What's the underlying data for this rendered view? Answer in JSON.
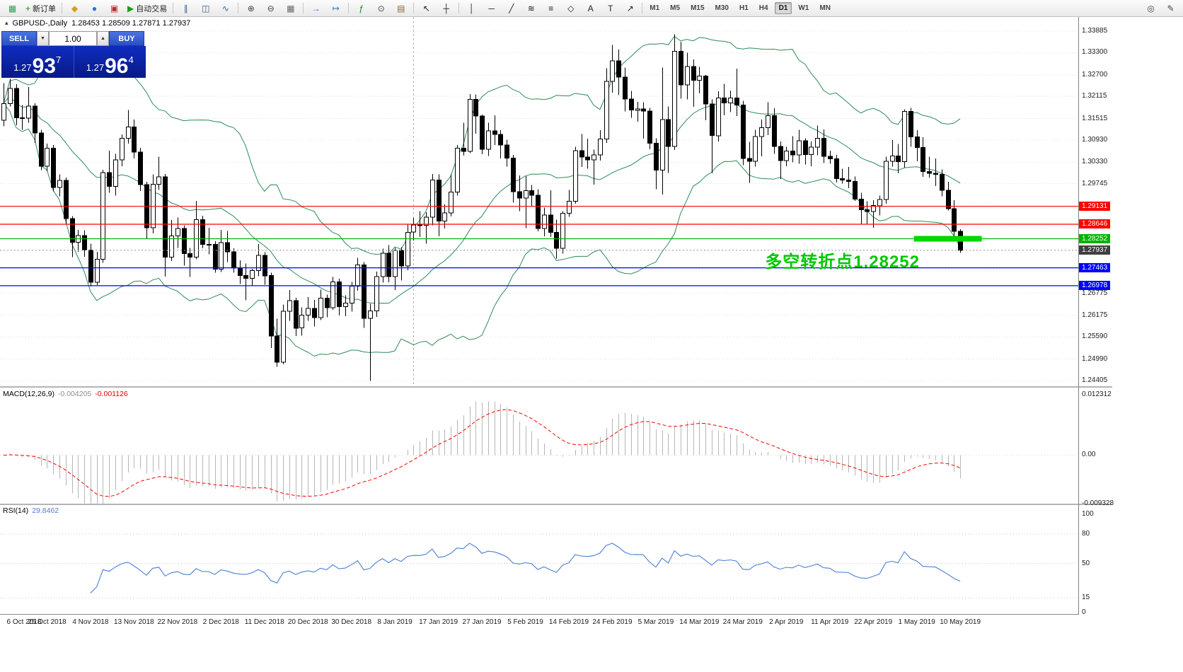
{
  "toolbar": {
    "groups": [
      {
        "items": [
          {
            "name": "app-button",
            "icon": "app-icon"
          },
          {
            "name": "new-order-button",
            "icon": "new-order-icon",
            "label": "新订单"
          }
        ]
      },
      {
        "items": [
          {
            "name": "charts-popup-button",
            "icon": "charts-popup-icon"
          },
          {
            "name": "profiles-button",
            "icon": "profiles-icon"
          },
          {
            "name": "strategy-tester-button",
            "icon": "strategy-tester-icon"
          },
          {
            "name": "autotrading-button",
            "icon": "autotrading-play-icon",
            "label": "自动交易"
          }
        ]
      },
      {
        "items": [
          {
            "name": "bar-chart-button",
            "icon": "bar-chart-icon"
          },
          {
            "name": "candlestick-chart-button",
            "icon": "candlestick-chart-icon"
          },
          {
            "name": "line-chart-button",
            "icon": "line-chart-icon"
          }
        ]
      },
      {
        "items": [
          {
            "name": "zoom-in-button",
            "icon": "zoom-in-icon"
          },
          {
            "name": "zoom-out-button",
            "icon": "zoom-out-icon"
          },
          {
            "name": "tile-windows-button",
            "icon": "tile-windows-icon"
          }
        ]
      },
      {
        "items": [
          {
            "name": "auto-scroll-button",
            "icon": "auto-scroll-icon"
          },
          {
            "name": "chart-shift-button",
            "icon": "chart-shift-icon"
          }
        ]
      },
      {
        "items": [
          {
            "name": "indicators-button",
            "icon": "indicators-icon"
          },
          {
            "name": "periods-button",
            "icon": "periods-icon"
          },
          {
            "name": "templates-button",
            "icon": "templates-icon"
          }
        ]
      },
      {
        "items": [
          {
            "name": "cursor-button",
            "icon": "cursor-icon"
          },
          {
            "name": "crosshair-button",
            "icon": "crosshair-icon"
          }
        ]
      },
      {
        "items": [
          {
            "name": "vertical-line-button",
            "icon": "vertical-line-icon"
          },
          {
            "name": "horizontal-line-button",
            "icon": "horizontal-line-icon"
          },
          {
            "name": "trendline-button",
            "icon": "trendline-icon"
          },
          {
            "name": "channel-button",
            "icon": "channel-icon"
          },
          {
            "name": "fibonacci-button",
            "icon": "fibonacci-icon"
          },
          {
            "name": "shapes-button",
            "icon": "shapes-icon"
          },
          {
            "name": "text-button",
            "icon": "text-icon"
          },
          {
            "name": "text-label-button",
            "icon": "text-label-icon"
          },
          {
            "name": "arrows-button",
            "icon": "arrows-icon"
          }
        ]
      }
    ],
    "timeframes": [
      "M1",
      "M5",
      "M15",
      "M30",
      "H1",
      "H4",
      "D1",
      "W1",
      "MN"
    ],
    "active_timeframe": "D1",
    "right_items": [
      {
        "name": "search-button",
        "icon": "search-icon"
      },
      {
        "name": "quick-edit-button",
        "icon": "edit-icon"
      }
    ]
  },
  "chart_header": {
    "icon": "▴",
    "symbol_period": "GBPUSD-,Daily",
    "ohlc": "1.28453 1.28509 1.27871 1.27937"
  },
  "quote_panel": {
    "sell_label": "SELL",
    "buy_label": "BUY",
    "volume": "1.00",
    "volume_down_icon": "▼",
    "volume_up_icon": "▲",
    "sell_price": {
      "prefix": "1.27",
      "big": "93",
      "sup": "7"
    },
    "buy_price": {
      "prefix": "1.27",
      "big": "96",
      "sup": "4"
    }
  },
  "annotation": {
    "text": "多空转折点1.28252",
    "color": "#00C800"
  },
  "macd": {
    "title": "MACD(12,26,9)",
    "main_value": "-0.004205",
    "signal_value": "-0.001126",
    "axis_labels": [
      "0.012312",
      "0.00",
      "-0.009328"
    ]
  },
  "rsi": {
    "title": "RSI(14)",
    "value": "29.8462",
    "axis_labels": [
      "100",
      "80",
      "50",
      "15",
      "0"
    ]
  },
  "chart_data": {
    "type": "candlestick",
    "symbol": "GBPUSD",
    "period": "Daily",
    "price_ticks": [
      "1.33885",
      "1.33300",
      "1.32700",
      "1.32115",
      "1.31515",
      "1.30930",
      "1.30330",
      "1.29745",
      "1.29145",
      "1.28560",
      "1.27960",
      "1.27375",
      "1.26775",
      "1.26175",
      "1.25590",
      "1.24990",
      "1.24405"
    ],
    "date_labels": [
      "6 Oct 2018",
      "25 Oct 2018",
      "4 Nov 2018",
      "13 Nov 2018",
      "22 Nov 2018",
      "2 Dec 2018",
      "11 Dec 2018",
      "20 Dec 2018",
      "30 Dec 2018",
      "8 Jan 2019",
      "17 Jan 2019",
      "27 Jan 2019",
      "5 Feb 2019",
      "14 Feb 2019",
      "24 Feb 2019",
      "5 Mar 2019",
      "14 Mar 2019",
      "24 Mar 2019",
      "2 Apr 2019",
      "11 Apr 2019",
      "22 Apr 2019",
      "1 May 2019",
      "10 May 2019"
    ],
    "label_step": 7,
    "vline_index": 66,
    "candle_up": "#ffffff",
    "candle_down": "#000000",
    "bollinger": {
      "period": 20,
      "deviation": 2,
      "color": "#2E8B57"
    },
    "levels": [
      {
        "price": 1.29131,
        "color": "#FF0000"
      },
      {
        "price": 1.28646,
        "color": "#FF0000"
      },
      {
        "price": 1.28252,
        "color": "#00B400"
      },
      {
        "price": 1.27463,
        "color": "#0000FF"
      },
      {
        "price": 1.26978,
        "color": "#0000FF"
      }
    ],
    "current_price": 1.27937,
    "highlight_bar": {
      "price": 1.28252,
      "from_index": 147,
      "to_index": 157,
      "color": "#00D800"
    },
    "macd": {
      "fast": 12,
      "slow": 26,
      "signal": 9,
      "range": [
        -0.009328,
        0.012312
      ],
      "histogram_color": "#b6b6b6",
      "signal_color": "#FF0000"
    },
    "rsi": {
      "period": 14,
      "levels": [
        80,
        50,
        15
      ],
      "color": "#4A7FD4"
    },
    "candles": [
      [
        1.3147,
        1.3247,
        1.313,
        1.3192
      ],
      [
        1.3192,
        1.3259,
        1.3184,
        1.3233
      ],
      [
        1.3233,
        1.3245,
        1.3133,
        1.3153
      ],
      [
        1.3153,
        1.3188,
        1.3121,
        1.3152
      ],
      [
        1.3152,
        1.3237,
        1.314,
        1.3185
      ],
      [
        1.3185,
        1.3193,
        1.3085,
        1.3112
      ],
      [
        1.3112,
        1.3121,
        1.3011,
        1.3022
      ],
      [
        1.3022,
        1.3083,
        1.3009,
        1.3071
      ],
      [
        1.3071,
        1.308,
        1.2954,
        1.2964
      ],
      [
        1.2964,
        1.3,
        1.294,
        1.2984
      ],
      [
        1.2984,
        1.2991,
        1.2865,
        1.288
      ],
      [
        1.288,
        1.2887,
        1.2775,
        1.2816
      ],
      [
        1.2816,
        1.2849,
        1.279,
        1.2834
      ],
      [
        1.2834,
        1.2848,
        1.2776,
        1.2795
      ],
      [
        1.2795,
        1.2812,
        1.2696,
        1.2707
      ],
      [
        1.2707,
        1.279,
        1.27,
        1.277
      ],
      [
        1.277,
        1.3012,
        1.276,
        1.3005
      ],
      [
        1.3005,
        1.3064,
        1.295,
        1.2967
      ],
      [
        1.2967,
        1.3056,
        1.2942,
        1.3039
      ],
      [
        1.3039,
        1.3108,
        1.3022,
        1.3098
      ],
      [
        1.3098,
        1.3175,
        1.3083,
        1.3128
      ],
      [
        1.3128,
        1.3149,
        1.3043,
        1.306
      ],
      [
        1.306,
        1.3072,
        1.2955,
        1.2972
      ],
      [
        1.2972,
        1.298,
        1.2825,
        1.2855
      ],
      [
        1.2855,
        1.3,
        1.284,
        1.2973
      ],
      [
        1.2973,
        1.3048,
        1.2958,
        1.2993
      ],
      [
        1.2993,
        1.3001,
        1.2723,
        1.2775
      ],
      [
        1.2775,
        1.2876,
        1.2765,
        1.2833
      ],
      [
        1.2833,
        1.2883,
        1.28,
        1.2853
      ],
      [
        1.2853,
        1.2862,
        1.2752,
        1.2785
      ],
      [
        1.2785,
        1.28,
        1.2722,
        1.2775
      ],
      [
        1.2775,
        1.2928,
        1.277,
        1.2877
      ],
      [
        1.2877,
        1.2888,
        1.2799,
        1.281
      ],
      [
        1.281,
        1.2855,
        1.2783,
        1.281
      ],
      [
        1.281,
        1.2819,
        1.2733,
        1.2743
      ],
      [
        1.2743,
        1.2849,
        1.2735,
        1.2815
      ],
      [
        1.2815,
        1.2846,
        1.2762,
        1.279
      ],
      [
        1.279,
        1.2799,
        1.2733,
        1.2746
      ],
      [
        1.2746,
        1.2767,
        1.2702,
        1.2725
      ],
      [
        1.2725,
        1.2758,
        1.2658,
        1.2718
      ],
      [
        1.2718,
        1.2744,
        1.2697,
        1.2739
      ],
      [
        1.2739,
        1.2811,
        1.2724,
        1.278
      ],
      [
        1.278,
        1.2789,
        1.2701,
        1.2725
      ],
      [
        1.2725,
        1.2733,
        1.2529,
        1.2561
      ],
      [
        1.2561,
        1.2608,
        1.2478,
        1.249
      ],
      [
        1.249,
        1.2647,
        1.2485,
        1.2629
      ],
      [
        1.2629,
        1.2686,
        1.2603,
        1.2657
      ],
      [
        1.2657,
        1.2665,
        1.2561,
        1.2583
      ],
      [
        1.2583,
        1.2639,
        1.2562,
        1.2618
      ],
      [
        1.2618,
        1.2667,
        1.2603,
        1.2636
      ],
      [
        1.2636,
        1.2659,
        1.2587,
        1.2611
      ],
      [
        1.2611,
        1.2687,
        1.2605,
        1.2664
      ],
      [
        1.2664,
        1.2674,
        1.2612,
        1.2638
      ],
      [
        1.2638,
        1.2722,
        1.2632,
        1.2708
      ],
      [
        1.2708,
        1.2717,
        1.2617,
        1.2641
      ],
      [
        1.2641,
        1.2672,
        1.2615,
        1.2651
      ],
      [
        1.2651,
        1.2708,
        1.2628,
        1.2697
      ],
      [
        1.2697,
        1.2773,
        1.2684,
        1.2754
      ],
      [
        1.2754,
        1.2762,
        1.2583,
        1.2609
      ],
      [
        1.2609,
        1.2649,
        1.244,
        1.263
      ],
      [
        1.263,
        1.2736,
        1.2613,
        1.2723
      ],
      [
        1.2723,
        1.2798,
        1.2706,
        1.2786
      ],
      [
        1.2786,
        1.2808,
        1.2707,
        1.2723
      ],
      [
        1.2723,
        1.28,
        1.2686,
        1.2794
      ],
      [
        1.2794,
        1.2802,
        1.2712,
        1.2751
      ],
      [
        1.2751,
        1.2866,
        1.274,
        1.2843
      ],
      [
        1.2843,
        1.2882,
        1.282,
        1.2863
      ],
      [
        1.2863,
        1.29,
        1.283,
        1.2862
      ],
      [
        1.2862,
        1.2897,
        1.2812,
        1.2884
      ],
      [
        1.2884,
        1.3001,
        1.2862,
        1.2985
      ],
      [
        1.2985,
        1.3,
        1.2832,
        1.2873
      ],
      [
        1.2873,
        1.2918,
        1.2853,
        1.2895
      ],
      [
        1.2895,
        1.3,
        1.2886,
        1.2952
      ],
      [
        1.2952,
        1.308,
        1.2942,
        1.3071
      ],
      [
        1.3071,
        1.314,
        1.3051,
        1.3062
      ],
      [
        1.3062,
        1.3218,
        1.3057,
        1.3203
      ],
      [
        1.3203,
        1.3217,
        1.311,
        1.3158
      ],
      [
        1.3158,
        1.3162,
        1.3055,
        1.3068
      ],
      [
        1.3068,
        1.314,
        1.305,
        1.3118
      ],
      [
        1.3118,
        1.316,
        1.308,
        1.3108
      ],
      [
        1.3108,
        1.312,
        1.3043,
        1.308
      ],
      [
        1.308,
        1.3094,
        1.3021,
        1.3044
      ],
      [
        1.3044,
        1.3053,
        1.2923,
        1.2953
      ],
      [
        1.2953,
        1.2997,
        1.29,
        1.2936
      ],
      [
        1.2936,
        1.2995,
        1.2854,
        1.2956
      ],
      [
        1.2956,
        1.2971,
        1.2914,
        1.2943
      ],
      [
        1.2943,
        1.296,
        1.2845,
        1.2853
      ],
      [
        1.2853,
        1.291,
        1.2832,
        1.289
      ],
      [
        1.289,
        1.2957,
        1.283,
        1.2843
      ],
      [
        1.2843,
        1.2877,
        1.2772,
        1.2799
      ],
      [
        1.2799,
        1.29,
        1.2785,
        1.2894
      ],
      [
        1.2894,
        1.2958,
        1.2885,
        1.2927
      ],
      [
        1.2927,
        1.3075,
        1.292,
        1.3064
      ],
      [
        1.3064,
        1.3109,
        1.302,
        1.3047
      ],
      [
        1.3047,
        1.3097,
        1.3015,
        1.3039
      ],
      [
        1.3039,
        1.3067,
        1.2972,
        1.3053
      ],
      [
        1.3053,
        1.312,
        1.3037,
        1.3096
      ],
      [
        1.3096,
        1.3288,
        1.3085,
        1.3252
      ],
      [
        1.3252,
        1.3351,
        1.3222,
        1.3308
      ],
      [
        1.3308,
        1.3339,
        1.3215,
        1.3264
      ],
      [
        1.3264,
        1.329,
        1.3171,
        1.3204
      ],
      [
        1.3204,
        1.3226,
        1.3153,
        1.3174
      ],
      [
        1.3174,
        1.3197,
        1.3143,
        1.3177
      ],
      [
        1.3177,
        1.3196,
        1.3097,
        1.3172
      ],
      [
        1.3172,
        1.318,
        1.3068,
        1.3084
      ],
      [
        1.3084,
        1.3098,
        1.296,
        1.3011
      ],
      [
        1.3011,
        1.329,
        1.2945,
        1.3149
      ],
      [
        1.3149,
        1.3184,
        1.3004,
        1.3076
      ],
      [
        1.3076,
        1.338,
        1.3066,
        1.3334
      ],
      [
        1.3334,
        1.336,
        1.3205,
        1.3243
      ],
      [
        1.3243,
        1.333,
        1.3203,
        1.3293
      ],
      [
        1.3293,
        1.3312,
        1.3183,
        1.3255
      ],
      [
        1.3255,
        1.3292,
        1.322,
        1.3267
      ],
      [
        1.3267,
        1.327,
        1.3147,
        1.3191
      ],
      [
        1.3191,
        1.3203,
        1.3003,
        1.3105
      ],
      [
        1.3105,
        1.3225,
        1.3089,
        1.3207
      ],
      [
        1.3207,
        1.3246,
        1.316,
        1.3194
      ],
      [
        1.3194,
        1.3227,
        1.3169,
        1.3207
      ],
      [
        1.3207,
        1.3287,
        1.3158,
        1.3188
      ],
      [
        1.3188,
        1.3199,
        1.3025,
        1.3043
      ],
      [
        1.3043,
        1.3088,
        1.2977,
        1.3035
      ],
      [
        1.3035,
        1.3121,
        1.3021,
        1.3103
      ],
      [
        1.3103,
        1.3149,
        1.3049,
        1.3127
      ],
      [
        1.3127,
        1.3196,
        1.3106,
        1.3159
      ],
      [
        1.3159,
        1.3179,
        1.3056,
        1.3076
      ],
      [
        1.3076,
        1.3089,
        1.2987,
        1.3037
      ],
      [
        1.3037,
        1.3075,
        1.3022,
        1.3063
      ],
      [
        1.3063,
        1.3104,
        1.3033,
        1.3053
      ],
      [
        1.3053,
        1.3121,
        1.3029,
        1.3091
      ],
      [
        1.3091,
        1.3098,
        1.3027,
        1.3054
      ],
      [
        1.3054,
        1.3089,
        1.3022,
        1.3074
      ],
      [
        1.3074,
        1.3132,
        1.3052,
        1.3098
      ],
      [
        1.3098,
        1.3122,
        1.3031,
        1.3049
      ],
      [
        1.3049,
        1.3064,
        1.3029,
        1.3042
      ],
      [
        1.3042,
        1.3053,
        1.2978,
        1.2988
      ],
      [
        1.2988,
        1.3015,
        1.2975,
        1.2985
      ],
      [
        1.2985,
        1.302,
        1.2962,
        1.2981
      ],
      [
        1.2981,
        1.2994,
        1.2928,
        1.2933
      ],
      [
        1.2933,
        1.295,
        1.2865,
        1.2904
      ],
      [
        1.2904,
        1.2927,
        1.2866,
        1.2899
      ],
      [
        1.2899,
        1.293,
        1.2855,
        1.2915
      ],
      [
        1.2915,
        1.2942,
        1.2889,
        1.2932
      ],
      [
        1.2932,
        1.3048,
        1.292,
        1.3035
      ],
      [
        1.3035,
        1.3093,
        1.3021,
        1.305
      ],
      [
        1.305,
        1.3082,
        1.3003,
        1.3034
      ],
      [
        1.3034,
        1.3176,
        1.3018,
        1.3171
      ],
      [
        1.3171,
        1.318,
        1.3075,
        1.3102
      ],
      [
        1.3102,
        1.312,
        1.3035,
        1.3073
      ],
      [
        1.3073,
        1.3101,
        1.2993,
        1.3008
      ],
      [
        1.3008,
        1.3048,
        1.299,
        1.3003
      ],
      [
        1.3003,
        1.3043,
        1.2968,
        1.3
      ],
      [
        1.3,
        1.3013,
        1.294,
        1.2957
      ],
      [
        1.2957,
        1.298,
        1.2902,
        1.2907
      ],
      [
        1.2907,
        1.293,
        1.283,
        1.2845
      ],
      [
        1.28453,
        1.28509,
        1.27871,
        1.27937
      ]
    ]
  }
}
